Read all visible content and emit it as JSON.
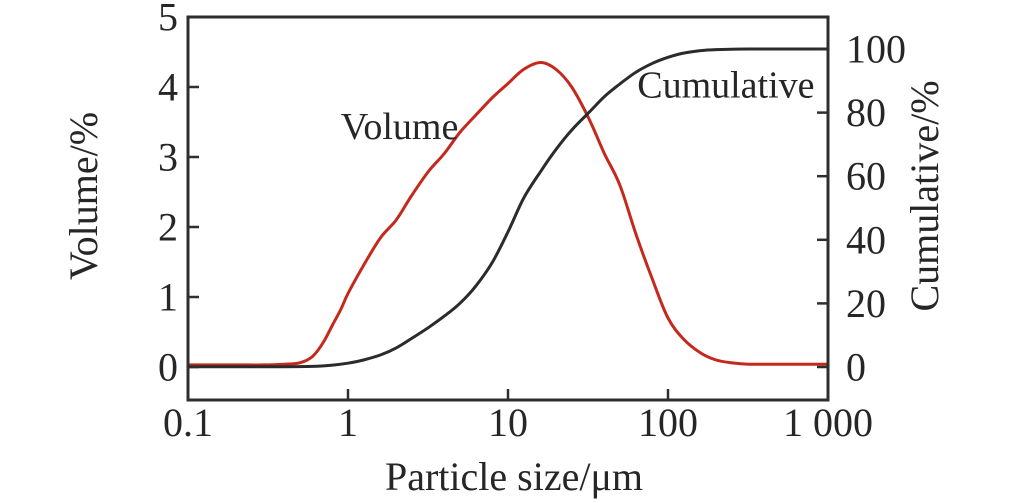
{
  "colors": {
    "background": "#ffffff",
    "frame": "#2e2e2e",
    "text": "#262626",
    "volume_curve": "#c5281c",
    "cumulative_curve": "#2b2b2b"
  },
  "chart_data": {
    "type": "line",
    "title": "",
    "xlabel": "Particle size/μm",
    "ylabel_left": "Volume/%",
    "ylabel_right": "Cumulative/%",
    "x_scale": "log",
    "xlim": [
      0.1,
      1000
    ],
    "ylim_left": [
      0,
      5
    ],
    "ylim_right": [
      0,
      100
    ],
    "grid": false,
    "legend_position": "in-plot-text",
    "x_ticks": {
      "values": [
        0.1,
        1,
        10,
        100,
        1000
      ],
      "labels": [
        "0.1",
        "1",
        "10",
        "100",
        "1 000"
      ]
    },
    "y_ticks_left": {
      "values": [
        0,
        1,
        2,
        3,
        4,
        5
      ],
      "labels": [
        "0",
        "1",
        "2",
        "3",
        "4",
        "5"
      ]
    },
    "y_ticks_right": {
      "values": [
        0,
        20,
        40,
        60,
        80,
        100
      ],
      "labels": [
        "0",
        "20",
        "40",
        "60",
        "80",
        "100"
      ]
    },
    "series": [
      {
        "name": "Volume",
        "axis": "left",
        "color": "#c5281c",
        "label": {
          "text": "Volume",
          "x": 2.1,
          "y": 3.43
        },
        "points": [
          [
            0.1,
            0.03
          ],
          [
            0.2,
            0.03
          ],
          [
            0.3,
            0.03
          ],
          [
            0.4,
            0.04
          ],
          [
            0.5,
            0.06
          ],
          [
            0.6,
            0.15
          ],
          [
            0.7,
            0.35
          ],
          [
            0.8,
            0.6
          ],
          [
            0.9,
            0.82
          ],
          [
            1,
            1.05
          ],
          [
            1.25,
            1.45
          ],
          [
            1.6,
            1.85
          ],
          [
            2,
            2.1
          ],
          [
            2.5,
            2.45
          ],
          [
            3.2,
            2.8
          ],
          [
            4,
            3.05
          ],
          [
            5,
            3.35
          ],
          [
            6.3,
            3.6
          ],
          [
            8,
            3.85
          ],
          [
            10,
            4.05
          ],
          [
            12.5,
            4.25
          ],
          [
            16,
            4.35
          ],
          [
            20,
            4.25
          ],
          [
            25,
            4.0
          ],
          [
            32,
            3.55
          ],
          [
            40,
            3.05
          ],
          [
            50,
            2.6
          ],
          [
            63,
            1.9
          ],
          [
            80,
            1.25
          ],
          [
            100,
            0.7
          ],
          [
            125,
            0.4
          ],
          [
            160,
            0.2
          ],
          [
            200,
            0.1
          ],
          [
            250,
            0.06
          ],
          [
            320,
            0.04
          ],
          [
            500,
            0.04
          ],
          [
            1000,
            0.04
          ]
        ]
      },
      {
        "name": "Cumulative",
        "axis": "right",
        "color": "#2b2b2b",
        "label": {
          "text": "Cumulative",
          "x": 230,
          "y": 88.5
        },
        "points": [
          [
            0.1,
            0.1
          ],
          [
            0.4,
            0.1
          ],
          [
            0.6,
            0.2
          ],
          [
            0.8,
            0.6
          ],
          [
            1,
            1.2
          ],
          [
            1.25,
            2.2
          ],
          [
            1.6,
            3.8
          ],
          [
            2,
            6
          ],
          [
            2.5,
            9
          ],
          [
            3.2,
            12.5
          ],
          [
            4,
            16
          ],
          [
            5,
            20
          ],
          [
            6.3,
            25.5
          ],
          [
            8,
            33
          ],
          [
            10,
            42.5
          ],
          [
            12.5,
            53
          ],
          [
            16,
            61.5
          ],
          [
            20,
            68.5
          ],
          [
            25,
            74.5
          ],
          [
            32,
            80
          ],
          [
            40,
            85
          ],
          [
            50,
            89
          ],
          [
            63,
            92.7
          ],
          [
            80,
            95.5
          ],
          [
            100,
            97.4
          ],
          [
            125,
            98.7
          ],
          [
            160,
            99.5
          ],
          [
            200,
            99.8
          ],
          [
            320,
            100
          ],
          [
            500,
            100
          ],
          [
            1000,
            100
          ]
        ]
      }
    ]
  }
}
